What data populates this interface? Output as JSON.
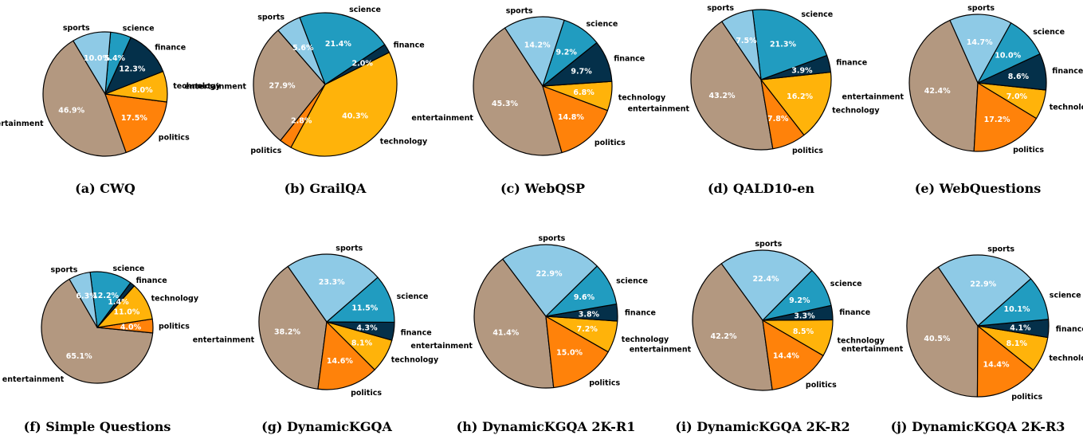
{
  "colors": {
    "entertainment": "#b39880",
    "politics": "#ff820a",
    "technology": "#ffb30a",
    "finance": "#04304a",
    "science": "#219cc0",
    "sports": "#8ecae6"
  },
  "chart_data": [
    {
      "type": "pie",
      "caption": "(a) CWQ",
      "slices": [
        {
          "label": "entertainment",
          "value": 46.9,
          "pct": "46.9%"
        },
        {
          "label": "politics",
          "value": 17.5,
          "pct": "17.5%"
        },
        {
          "label": "technology",
          "value": 8.0,
          "pct": "8.0%"
        },
        {
          "label": "finance",
          "value": 12.3,
          "pct": "12.3%"
        },
        {
          "label": "science",
          "value": 5.4,
          "pct": "5.4%"
        },
        {
          "label": "sports",
          "value": 10.0,
          "pct": "10.0%"
        }
      ]
    },
    {
      "type": "pie",
      "caption": "(b) GrailQA",
      "slices": [
        {
          "label": "entertainment",
          "value": 27.9,
          "pct": "27.9%"
        },
        {
          "label": "politics",
          "value": 2.8,
          "pct": "2.8%"
        },
        {
          "label": "technology",
          "value": 40.3,
          "pct": "40.3%"
        },
        {
          "label": "finance",
          "value": 2.0,
          "pct": "2.0%"
        },
        {
          "label": "science",
          "value": 21.4,
          "pct": "21.4%"
        },
        {
          "label": "sports",
          "value": 5.6,
          "pct": "5.6%"
        }
      ]
    },
    {
      "type": "pie",
      "caption": "(c) WebQSP",
      "slices": [
        {
          "label": "entertainment",
          "value": 45.3,
          "pct": "45.3%"
        },
        {
          "label": "politics",
          "value": 14.8,
          "pct": "14.8%"
        },
        {
          "label": "technology",
          "value": 6.8,
          "pct": "6.8%"
        },
        {
          "label": "finance",
          "value": 9.7,
          "pct": "9.7%"
        },
        {
          "label": "science",
          "value": 9.2,
          "pct": "9.2%"
        },
        {
          "label": "sports",
          "value": 14.2,
          "pct": "14.2%"
        }
      ]
    },
    {
      "type": "pie",
      "caption": "(d) QALD10-en",
      "slices": [
        {
          "label": "entertainment",
          "value": 43.2,
          "pct": "43.2%"
        },
        {
          "label": "politics",
          "value": 7.8,
          "pct": "7.8%"
        },
        {
          "label": "technology",
          "value": 16.2,
          "pct": "16.2%"
        },
        {
          "label": "finance",
          "value": 3.9,
          "pct": "3.9%"
        },
        {
          "label": "science",
          "value": 21.3,
          "pct": "21.3%"
        },
        {
          "label": "sports",
          "value": 7.5,
          "pct": "7.5%"
        }
      ]
    },
    {
      "type": "pie",
      "caption": "(e) WebQuestions",
      "slices": [
        {
          "label": "entertainment",
          "value": 42.4,
          "pct": "42.4%"
        },
        {
          "label": "politics",
          "value": 17.2,
          "pct": "17.2%"
        },
        {
          "label": "technology",
          "value": 7.0,
          "pct": "7.0%"
        },
        {
          "label": "finance",
          "value": 8.6,
          "pct": "8.6%"
        },
        {
          "label": "science",
          "value": 10.0,
          "pct": "10.0%"
        },
        {
          "label": "sports",
          "value": 14.7,
          "pct": "14.7%"
        }
      ]
    },
    {
      "type": "pie",
      "caption": "(f) Simple Questions",
      "slices": [
        {
          "label": "entertainment",
          "value": 65.1,
          "pct": "65.1%"
        },
        {
          "label": "politics",
          "value": 4.0,
          "pct": "4.0%"
        },
        {
          "label": "technology",
          "value": 11.0,
          "pct": "11.0%"
        },
        {
          "label": "finance",
          "value": 1.4,
          "pct": "1.4%"
        },
        {
          "label": "science",
          "value": 12.2,
          "pct": "12.2%"
        },
        {
          "label": "sports",
          "value": 6.3,
          "pct": "6.3%"
        }
      ]
    },
    {
      "type": "pie",
      "caption": "(g) DynamicKGQA",
      "slices": [
        {
          "label": "entertainment",
          "value": 38.2,
          "pct": "38.2%"
        },
        {
          "label": "politics",
          "value": 14.6,
          "pct": "14.6%"
        },
        {
          "label": "technology",
          "value": 8.1,
          "pct": "8.1%"
        },
        {
          "label": "finance",
          "value": 4.3,
          "pct": "4.3%"
        },
        {
          "label": "science",
          "value": 11.5,
          "pct": "11.5%"
        },
        {
          "label": "sports",
          "value": 23.3,
          "pct": "23.3%"
        }
      ]
    },
    {
      "type": "pie",
      "caption": "(h) DynamicKGQA 2K-R1",
      "slices": [
        {
          "label": "entertainment",
          "value": 41.4,
          "pct": "41.4%"
        },
        {
          "label": "politics",
          "value": 15.0,
          "pct": "15.0%"
        },
        {
          "label": "technology",
          "value": 7.2,
          "pct": "7.2%"
        },
        {
          "label": "finance",
          "value": 3.8,
          "pct": "3.8%"
        },
        {
          "label": "science",
          "value": 9.6,
          "pct": "9.6%"
        },
        {
          "label": "sports",
          "value": 22.9,
          "pct": "22.9%"
        }
      ]
    },
    {
      "type": "pie",
      "caption": "(i) DynamicKGQA 2K-R2",
      "slices": [
        {
          "label": "entertainment",
          "value": 42.2,
          "pct": "42.2%"
        },
        {
          "label": "politics",
          "value": 14.4,
          "pct": "14.4%"
        },
        {
          "label": "technology",
          "value": 8.5,
          "pct": "8.5%"
        },
        {
          "label": "finance",
          "value": 3.3,
          "pct": "3.3%"
        },
        {
          "label": "science",
          "value": 9.2,
          "pct": "9.2%"
        },
        {
          "label": "sports",
          "value": 22.4,
          "pct": "22.4%"
        }
      ]
    },
    {
      "type": "pie",
      "caption": "(j) DynamicKGQA 2K-R3",
      "slices": [
        {
          "label": "entertainment",
          "value": 40.5,
          "pct": "40.5%"
        },
        {
          "label": "politics",
          "value": 14.4,
          "pct": "14.4%"
        },
        {
          "label": "technology",
          "value": 8.1,
          "pct": "8.1%"
        },
        {
          "label": "finance",
          "value": 4.1,
          "pct": "4.1%"
        },
        {
          "label": "science",
          "value": 10.1,
          "pct": "10.1%"
        },
        {
          "label": "sports",
          "value": 22.9,
          "pct": "22.9%"
        }
      ]
    }
  ]
}
